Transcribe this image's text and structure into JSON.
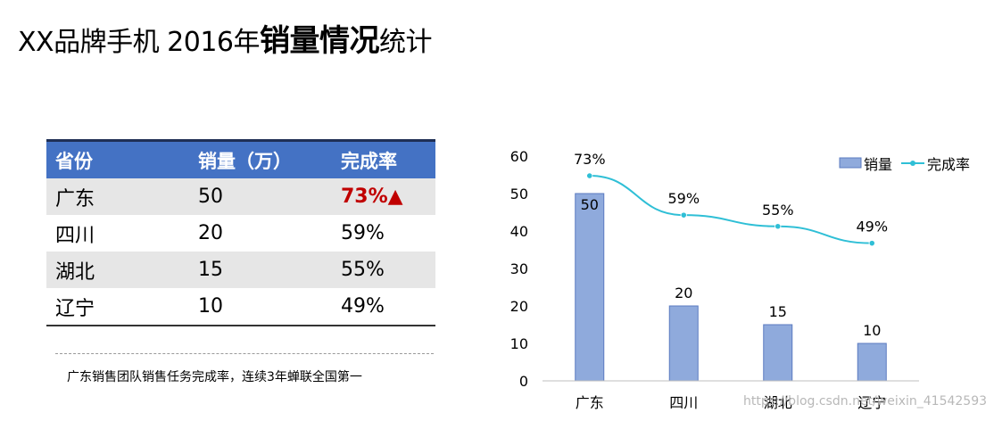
{
  "title": {
    "prefix": "XX品牌手机 2016年",
    "emphasis": "销量情况",
    "suffix": "统计"
  },
  "table": {
    "headers": [
      "省份",
      "销量（万）",
      "完成率"
    ],
    "rows": [
      {
        "province": "广东",
        "sales": "50",
        "rate": "73%▲"
      },
      {
        "province": "四川",
        "sales": "20",
        "rate": "59%"
      },
      {
        "province": "湖北",
        "sales": "15",
        "rate": "55%"
      },
      {
        "province": "辽宁",
        "sales": "10",
        "rate": "49%"
      }
    ]
  },
  "footnote": "广东销售团队销售任务完成率，连续3年蝉联全国第一",
  "watermark": "https://blog.csdn.net/weixin_41542593",
  "chart_data": {
    "type": "bar",
    "categories": [
      "广东",
      "四川",
      "湖北",
      "辽宁"
    ],
    "series": [
      {
        "name": "销量",
        "type": "bar",
        "values": [
          50,
          20,
          15,
          10
        ],
        "color": "#8faadc"
      },
      {
        "name": "完成率",
        "type": "line",
        "values": [
          73,
          59,
          55,
          49
        ],
        "labels": [
          "73%",
          "59%",
          "55%",
          "49%"
        ],
        "color": "#2fbfd6"
      }
    ],
    "ylim": [
      0,
      60
    ],
    "yticks": [
      0,
      10,
      20,
      30,
      40,
      50,
      60
    ],
    "xlabel": "",
    "ylabel": "",
    "legend": "top-right",
    "grid": false
  }
}
